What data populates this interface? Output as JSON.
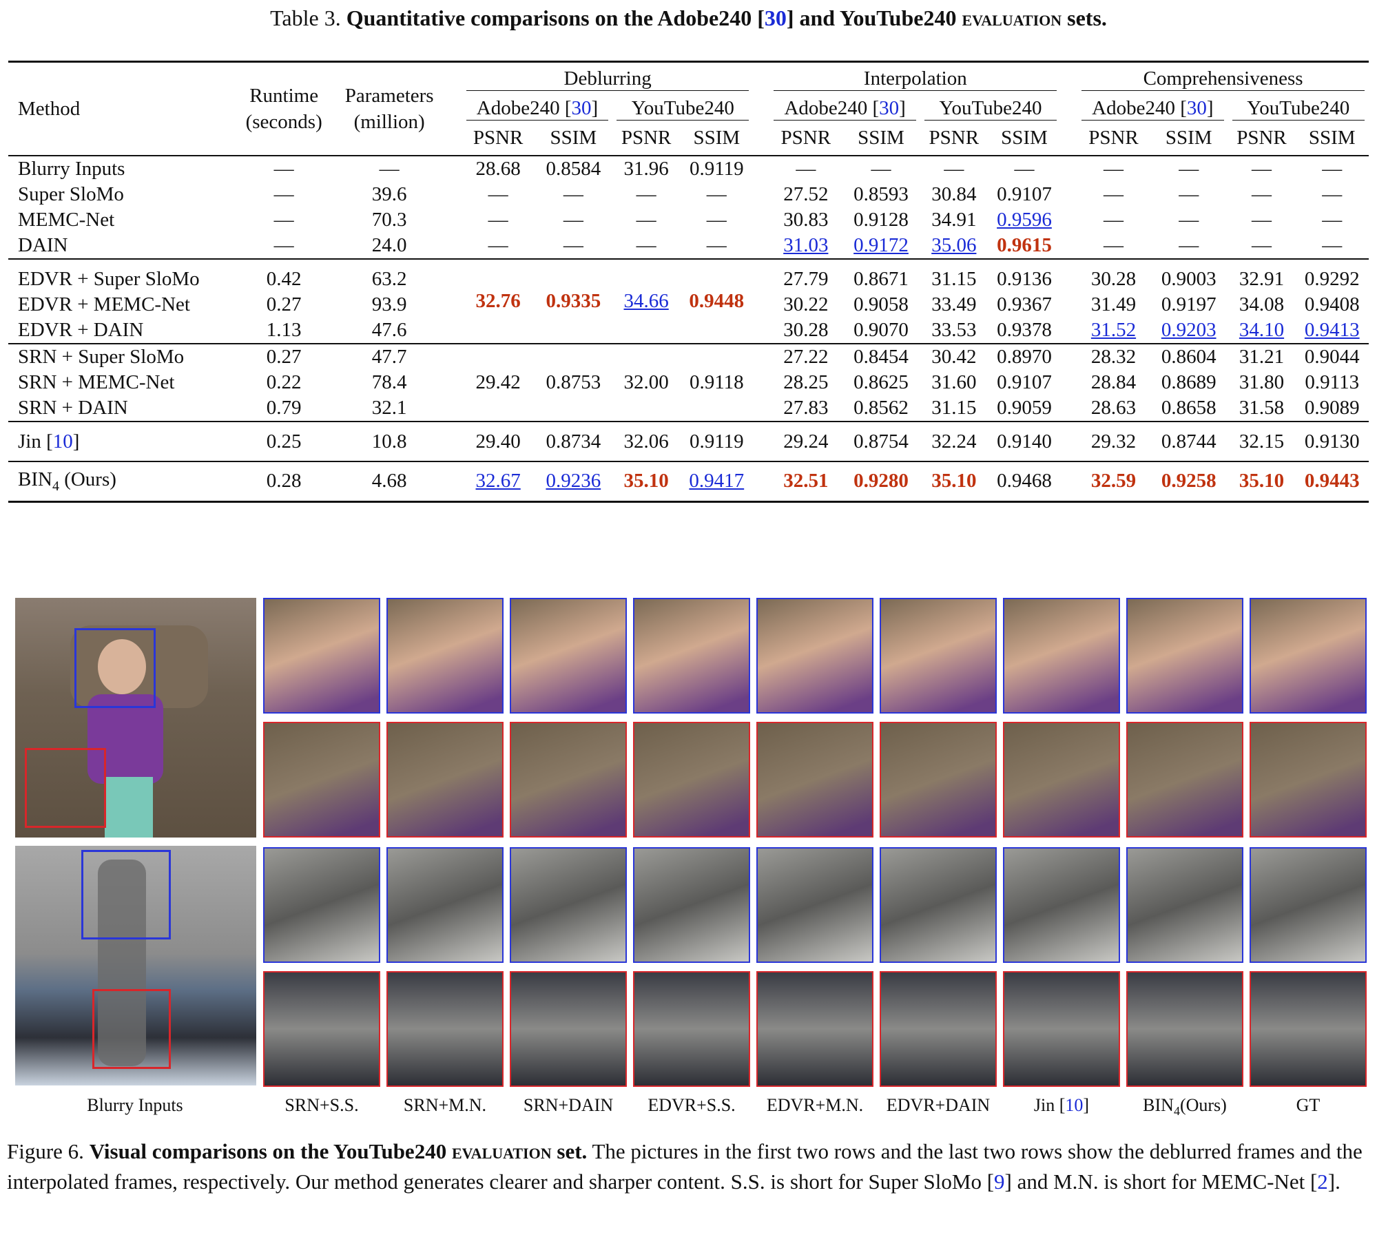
{
  "table_caption": {
    "prefix": "Table 3.",
    "bold_a": "Quantitative comparisons on the Adobe240 [",
    "ref": "30",
    "bold_b": "] and YouTube240 ",
    "sc": "evaluation",
    "bold_c": " sets."
  },
  "header": {
    "method": "Method",
    "runtime": "Runtime",
    "runtime_unit": "(seconds)",
    "params": "Parameters",
    "params_unit": "(million)",
    "groups": [
      "Deblurring",
      "Interpolation",
      "Comprehensiveness"
    ],
    "adobe": "Adobe240 [",
    "adobe_ref": "30",
    "adobe_end": "]",
    "youtube": "YouTube240",
    "psnr": "PSNR",
    "ssim": "SSIM"
  },
  "dash": "—",
  "rows": {
    "blurry": [
      "Blurry Inputs",
      "—",
      "—",
      "28.68",
      "0.8584",
      "31.96",
      "0.9119",
      "—",
      "—",
      "—",
      "—",
      "—",
      "—",
      "—",
      "—"
    ],
    "superslomo": [
      "Super SloMo",
      "—",
      "39.6",
      "—",
      "—",
      "—",
      "—",
      "27.52",
      "0.8593",
      "30.84",
      "0.9107",
      "—",
      "—",
      "—",
      "—"
    ],
    "memc": [
      "MEMC-Net",
      "—",
      "70.3",
      "—",
      "—",
      "—",
      "—",
      "30.83",
      "0.9128",
      "34.91",
      "0.9596",
      "—",
      "—",
      "—",
      "—"
    ],
    "dain": [
      "DAIN",
      "—",
      "24.0",
      "—",
      "—",
      "—",
      "—",
      "31.03",
      "0.9172",
      "35.06",
      "0.9615",
      "—",
      "—",
      "—",
      "—"
    ],
    "edvr_ss": [
      "EDVR + Super SloMo",
      "0.42",
      "63.2",
      "27.79",
      "0.8671",
      "31.15",
      "0.9136",
      "30.28",
      "0.9003",
      "32.91",
      "0.9292"
    ],
    "edvr_mn": [
      "EDVR + MEMC-Net",
      "0.27",
      "93.9",
      "30.22",
      "0.9058",
      "33.49",
      "0.9367",
      "31.49",
      "0.9197",
      "34.08",
      "0.9408"
    ],
    "edvr_dain": [
      "EDVR + DAIN",
      "1.13",
      "47.6",
      "30.28",
      "0.9070",
      "33.53",
      "0.9378",
      "31.52",
      "0.9203",
      "34.10",
      "0.9413"
    ],
    "edvr_deblur": [
      "32.76",
      "0.9335",
      "34.66",
      "0.9448"
    ],
    "srn_ss": [
      "SRN + Super SloMo",
      "0.27",
      "47.7",
      "27.22",
      "0.8454",
      "30.42",
      "0.8970",
      "28.32",
      "0.8604",
      "31.21",
      "0.9044"
    ],
    "srn_mn": [
      "SRN + MEMC-Net",
      "0.22",
      "78.4",
      "28.25",
      "0.8625",
      "31.60",
      "0.9107",
      "28.84",
      "0.8689",
      "31.80",
      "0.9113"
    ],
    "srn_dain": [
      "SRN + DAIN",
      "0.79",
      "32.1",
      "27.83",
      "0.8562",
      "31.15",
      "0.9059",
      "28.63",
      "0.8658",
      "31.58",
      "0.9089"
    ],
    "srn_deblur": [
      "29.42",
      "0.8753",
      "32.00",
      "0.9118"
    ],
    "jin": [
      "Jin [",
      "10",
      "]",
      "0.25",
      "10.8",
      "29.40",
      "0.8734",
      "32.06",
      "0.9119",
      "29.24",
      "0.8754",
      "32.24",
      "0.9140",
      "29.32",
      "0.8744",
      "32.15",
      "0.9130"
    ],
    "bin": [
      "BIN",
      "4",
      " (Ours)",
      "0.28",
      "4.68",
      "32.67",
      "0.9236",
      "35.10",
      "0.9417",
      "32.51",
      "0.9280",
      "35.10",
      "0.9468",
      "32.59",
      "0.9258",
      "35.10",
      "0.9443"
    ]
  },
  "figure": {
    "labels": [
      "Blurry Inputs",
      "SRN+S.S.",
      "SRN+M.N.",
      "SRN+DAIN",
      "EDVR+S.S.",
      "EDVR+M.N.",
      "EDVR+DAIN",
      "Jin [",
      "10",
      "]",
      "BIN",
      "4",
      "(Ours)",
      "GT"
    ],
    "colors": {
      "blue_box": "#2a36d8",
      "red_box": "#d8262a",
      "best": "#c0320f",
      "second": "#1a2bd6"
    }
  },
  "figure_caption": {
    "prefix": "Figure 6.",
    "bold": "Visual comparisons on the YouTube240 ",
    "sc": "evaluation",
    "bold_end": " set.",
    "text_a": " The pictures in the first two rows and the last two rows show the deblurred frames and the interpolated frames, respectively. Our method generates clearer and sharper content. S.S. is short for Super SloMo [",
    "ref9": "9",
    "text_b": "] and M.N. is short for MEMC-Net [",
    "ref2": "2",
    "text_c": "]."
  }
}
